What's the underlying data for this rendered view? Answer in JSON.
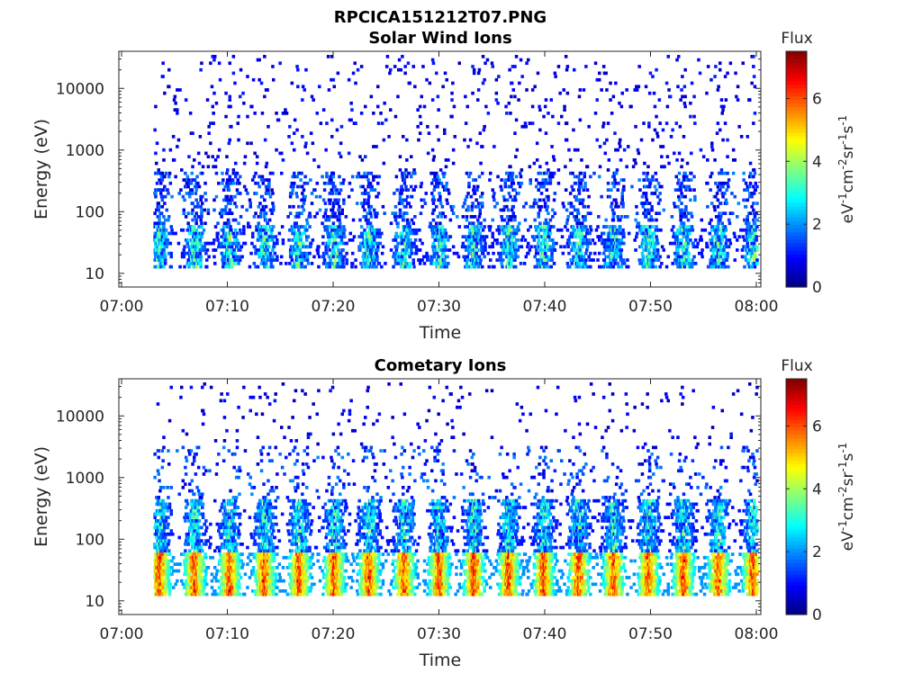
{
  "figure": {
    "title": "RPCICA151212T07.PNG"
  },
  "chart_data": [
    {
      "type": "heatmap",
      "title": "Solar Wind Ions",
      "xlabel": "Time",
      "ylabel": "Energy (eV)",
      "x_ticks": [
        "07:00",
        "07:10",
        "07:20",
        "07:30",
        "07:40",
        "07:50",
        "08:00"
      ],
      "x_range": [
        "07:00",
        "08:00"
      ],
      "y_scale": "log",
      "y_ticks": [
        "10",
        "100",
        "1000",
        "10000"
      ],
      "y_range": [
        6,
        40000
      ],
      "colorbar": {
        "title": "Flux",
        "label_parts": [
          "eV",
          "-1",
          "cm",
          "-2",
          "sr",
          "-1",
          "s",
          "-1"
        ],
        "ticks": [
          "0",
          "2",
          "4",
          "6"
        ],
        "range": [
          0,
          7.5
        ],
        "colormap": "jet"
      },
      "legend": "none",
      "grid": false,
      "intensity_profile": "solar"
    },
    {
      "type": "heatmap",
      "title": "Cometary Ions",
      "xlabel": "Time",
      "ylabel": "Energy (eV)",
      "x_ticks": [
        "07:00",
        "07:10",
        "07:20",
        "07:30",
        "07:40",
        "07:50",
        "08:00"
      ],
      "x_range": [
        "07:00",
        "08:00"
      ],
      "y_scale": "log",
      "y_ticks": [
        "10",
        "100",
        "1000",
        "10000"
      ],
      "y_range": [
        6,
        40000
      ],
      "colorbar": {
        "title": "Flux",
        "label_parts": [
          "eV",
          "-1",
          "cm",
          "-2",
          "sr",
          "-1",
          "s",
          "-1"
        ],
        "ticks": [
          "0",
          "2",
          "4",
          "6"
        ],
        "range": [
          0,
          7.5
        ],
        "colormap": "jet"
      },
      "legend": "none",
      "grid": false,
      "intensity_profile": "cometary"
    }
  ]
}
